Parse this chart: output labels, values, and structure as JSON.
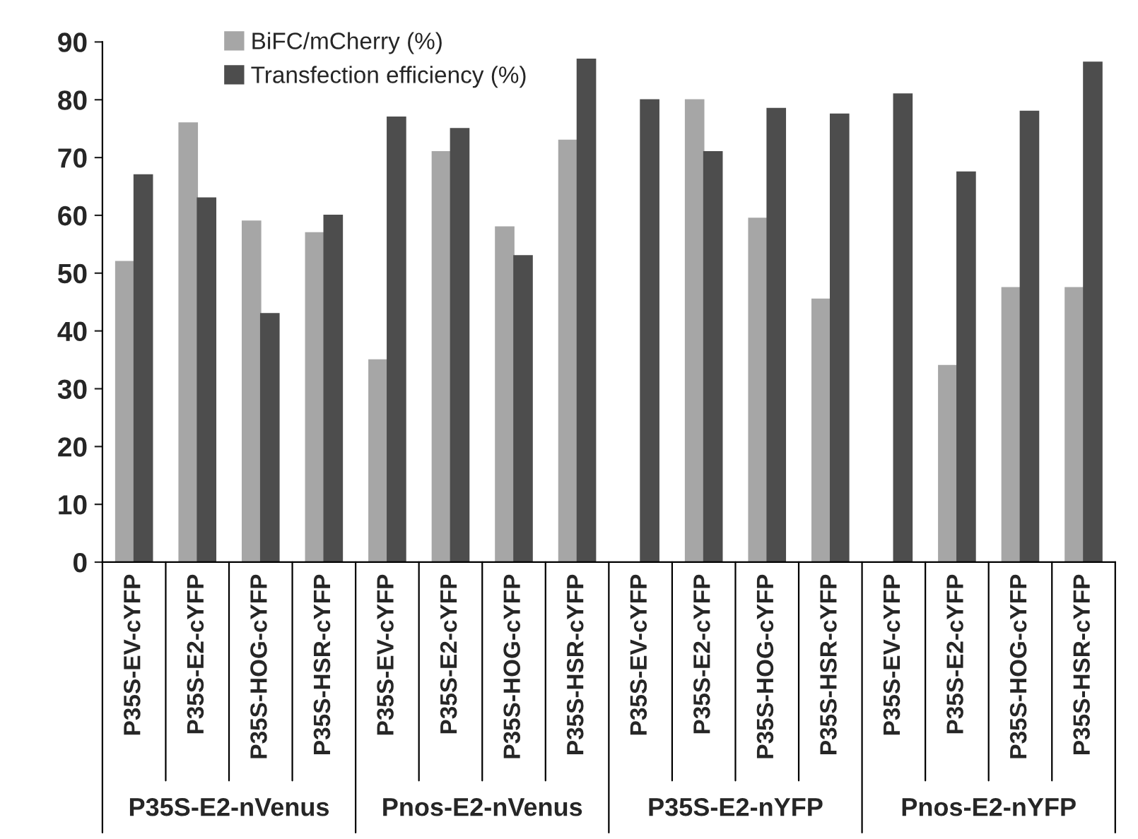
{
  "chart_data": {
    "type": "bar",
    "categories": [
      "P35S-EV-cYFP",
      "P35S-E2-cYFP",
      "P35S-HOG-cYFP",
      "P35S-HSR-cYFP",
      "P35S-EV-cYFP",
      "P35S-E2-cYFP",
      "P35S-HOG-cYFP",
      "P35S-HSR-cYFP",
      "P35S-EV-cYFP",
      "P35S-E2-cYFP",
      "P35S-HOG-cYFP",
      "P35S-HSR-cYFP",
      "P35S-EV-cYFP",
      "P35S-E2-cYFP",
      "P35S-HOG-cYFP",
      "P35S-HSR-cYFP"
    ],
    "series": [
      {
        "name": "BiFC/mCherry (%)",
        "color": "#a6a6a6",
        "values": [
          52,
          76,
          59,
          57,
          35,
          71,
          58,
          73,
          0,
          80,
          59.5,
          45.5,
          0,
          34,
          47.5,
          47.5
        ]
      },
      {
        "name": "Transfection efficiency (%)",
        "color": "#4d4d4d",
        "values": [
          67,
          63,
          43,
          60,
          77,
          75,
          53,
          87,
          80,
          71,
          78.5,
          77.5,
          81,
          67.5,
          78,
          86.5
        ]
      }
    ],
    "annotations": [
      "P35S-E2-nVenus",
      "Pnos-E2-nVenus",
      "P35S-E2-nYFP",
      "Pnos-E2-nYFP"
    ],
    "ylim": [
      0,
      90
    ],
    "yticks": [
      0,
      10,
      20,
      30,
      40,
      50,
      60,
      70,
      80,
      90
    ],
    "grid": false,
    "legend": "top"
  }
}
